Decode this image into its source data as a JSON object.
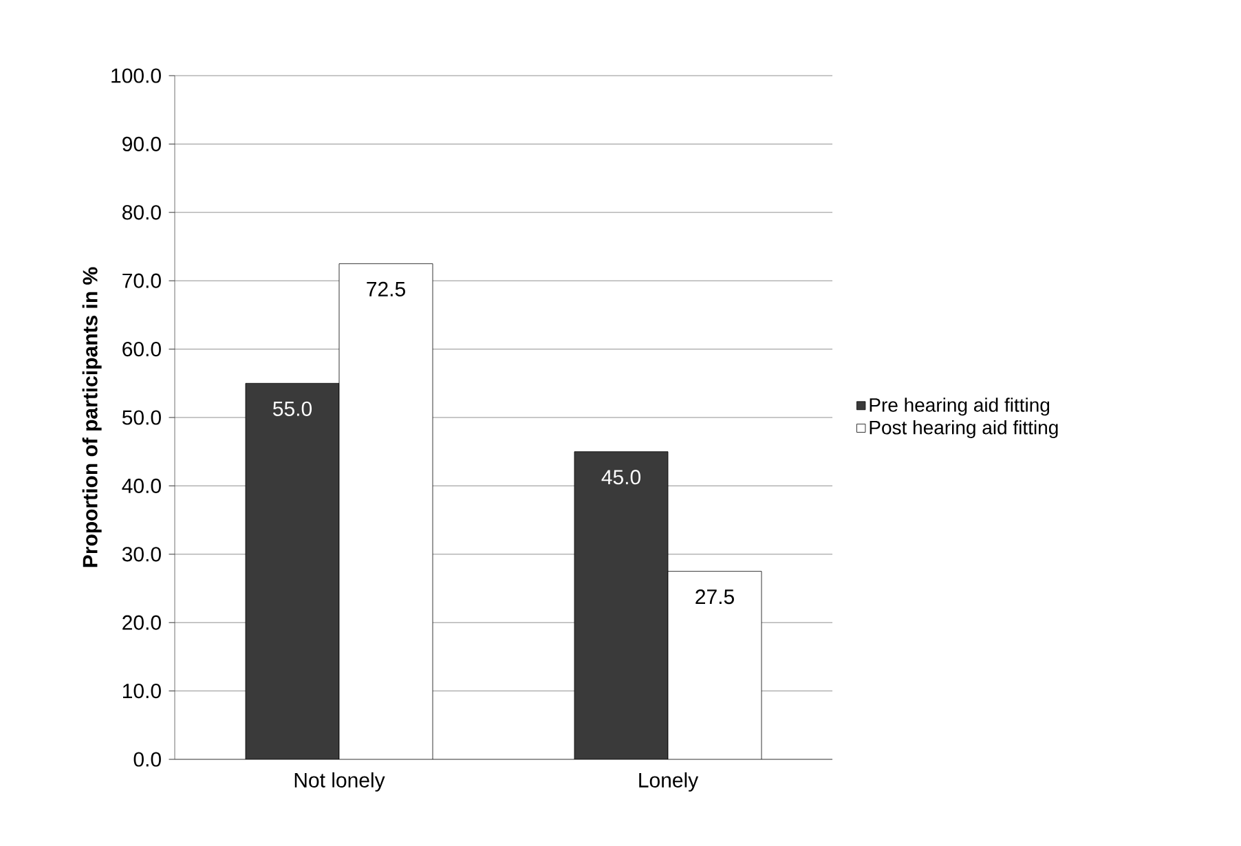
{
  "chart_data": {
    "type": "bar",
    "categories": [
      "Not lonely",
      "Lonely"
    ],
    "series": [
      {
        "name": "Pre hearing aid fitting",
        "color": "#3a3a3a",
        "values": [
          55.0,
          45.0
        ],
        "value_labels": [
          "55.0",
          "45.0"
        ]
      },
      {
        "name": "Post hearing aid fitting",
        "color": "#ffffff",
        "values": [
          72.5,
          27.5
        ],
        "value_labels": [
          "72.5",
          "27.5"
        ]
      }
    ],
    "ylabel": "Proportion of participants in %",
    "ylim": [
      0,
      100
    ],
    "yticks": [
      {
        "value": 0,
        "label": "0.0"
      },
      {
        "value": 10,
        "label": "10.0"
      },
      {
        "value": 20,
        "label": "20.0"
      },
      {
        "value": 30,
        "label": "30.0"
      },
      {
        "value": 40,
        "label": "40.0"
      },
      {
        "value": 50,
        "label": "50.0"
      },
      {
        "value": 60,
        "label": "60.0"
      },
      {
        "value": 70,
        "label": "70.0"
      },
      {
        "value": 80,
        "label": "80.0"
      },
      {
        "value": 90,
        "label": "90.0"
      },
      {
        "value": 100,
        "label": "100.0"
      }
    ],
    "grid": "y",
    "legend": "right"
  }
}
